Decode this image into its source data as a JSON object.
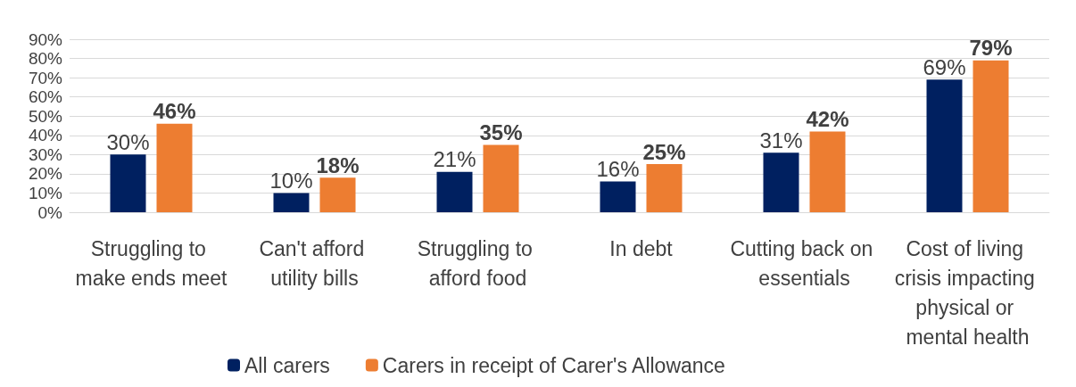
{
  "chart_data": {
    "type": "bar",
    "categories": [
      "Struggling to make ends meet",
      "Can't afford utility bills",
      "Struggling to afford food",
      "In debt",
      "Cutting back on essentials",
      "Cost of living crisis impacting physical or mental health"
    ],
    "series": [
      {
        "name": "All carers",
        "color": "#002060",
        "values": [
          30,
          10,
          21,
          16,
          31,
          69
        ],
        "value_labels": [
          "30%",
          "10%",
          "21%",
          "16%",
          "31%",
          "69%"
        ]
      },
      {
        "name": "Carers in receipt of Carer's Allowance",
        "color": "#ed7d31",
        "values": [
          46,
          18,
          35,
          25,
          42,
          79
        ],
        "value_labels": [
          "46%",
          "18%",
          "35%",
          "25%",
          "42%",
          "79%"
        ]
      }
    ],
    "ylim": [
      0,
      90
    ],
    "yticks": [
      {
        "value": 0,
        "label": "0%"
      },
      {
        "value": 10,
        "label": "10%"
      },
      {
        "value": 20,
        "label": "20%"
      },
      {
        "value": 30,
        "label": "30%"
      },
      {
        "value": 40,
        "label": "40%"
      },
      {
        "value": 50,
        "label": "50%"
      },
      {
        "value": 60,
        "label": "60%"
      },
      {
        "value": 70,
        "label": "70%"
      },
      {
        "value": 80,
        "label": "80%"
      },
      {
        "value": 90,
        "label": "90%"
      }
    ],
    "grid": "y",
    "legend": "bottom"
  }
}
